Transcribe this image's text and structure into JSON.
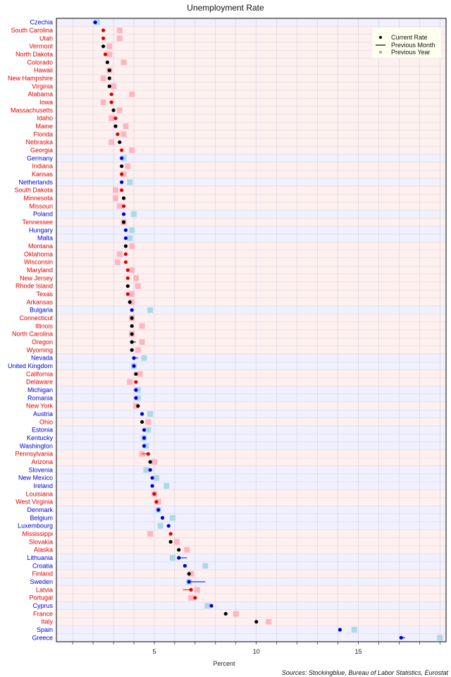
{
  "chart_data": {
    "type": "scatter",
    "title": "Unemployment Rate",
    "xlabel": "Percent",
    "source": "Sources: Stockingblue, Bureau of Labor Statistics, Eurostat",
    "xlim": [
      0.2,
      19.3
    ],
    "xticks": [
      5,
      10,
      15
    ],
    "legend": {
      "placement": "top-right",
      "current": "Current Rate",
      "previous_month": "Previous Month",
      "previous_year": "Previous Year"
    },
    "colors": {
      "eu": "#0000cc",
      "us_republican": "#e00000",
      "us_democratic": "#000000",
      "stripe_eu": "#f0f0ff",
      "stripe_us": "#fff0f0",
      "prev_year_eu": "#add8e6",
      "prev_year_us": "#ffb6c1"
    },
    "series": [
      {
        "name": "Current Rate"
      },
      {
        "name": "Previous Month"
      },
      {
        "name": "Previous Year"
      }
    ],
    "rows": [
      {
        "label": "Czechia",
        "group": "eu",
        "current": 2.1,
        "prev_month": 2.2,
        "prev_year": 2.2
      },
      {
        "label": "South Carolina",
        "group": "rep",
        "current": 2.5,
        "prev_month": 2.5,
        "prev_year": 3.3
      },
      {
        "label": "Utah",
        "group": "rep",
        "current": 2.5,
        "prev_month": 2.5,
        "prev_year": 3.3
      },
      {
        "label": "Vermont",
        "group": "dem",
        "current": 2.5,
        "prev_month": 2.5,
        "prev_year": 2.8
      },
      {
        "label": "North Dakota",
        "group": "rep",
        "current": 2.6,
        "prev_month": 2.6,
        "prev_year": 2.8
      },
      {
        "label": "Colorado",
        "group": "dem",
        "current": 2.7,
        "prev_month": 2.7,
        "prev_year": 3.5
      },
      {
        "label": "Hawaii",
        "group": "dem",
        "current": 2.8,
        "prev_month": 2.8,
        "prev_year": 2.8
      },
      {
        "label": "New Hampshire",
        "group": "dem",
        "current": 2.8,
        "prev_month": 2.8,
        "prev_year": 2.5
      },
      {
        "label": "Virginia",
        "group": "dem",
        "current": 2.8,
        "prev_month": 2.8,
        "prev_year": 3.0
      },
      {
        "label": "Alabama",
        "group": "rep",
        "current": 2.9,
        "prev_month": 2.9,
        "prev_year": 3.9
      },
      {
        "label": "Iowa",
        "group": "rep",
        "current": 2.9,
        "prev_month": 2.9,
        "prev_year": 2.5
      },
      {
        "label": "Massachusetts",
        "group": "dem",
        "current": 3.0,
        "prev_month": 3.0,
        "prev_year": 3.3
      },
      {
        "label": "Idaho",
        "group": "rep",
        "current": 3.1,
        "prev_month": 3.1,
        "prev_year": 2.9
      },
      {
        "label": "Maine",
        "group": "dem",
        "current": 3.1,
        "prev_month": 3.1,
        "prev_year": 3.6
      },
      {
        "label": "Florida",
        "group": "rep",
        "current": 3.2,
        "prev_month": 3.2,
        "prev_year": 3.5
      },
      {
        "label": "Nebraska",
        "group": "dem",
        "current": 3.3,
        "prev_month": 3.3,
        "prev_year": 2.9
      },
      {
        "label": "Georgia",
        "group": "rep",
        "current": 3.4,
        "prev_month": 3.4,
        "prev_year": 3.9
      },
      {
        "label": "Germany",
        "group": "eu",
        "current": 3.4,
        "prev_month": 3.4,
        "prev_year": 3.5
      },
      {
        "label": "Indiana",
        "group": "dem",
        "current": 3.4,
        "prev_month": 3.4,
        "prev_year": 3.7
      },
      {
        "label": "Kansas",
        "group": "rep",
        "current": 3.4,
        "prev_month": 3.4,
        "prev_year": 3.5
      },
      {
        "label": "Netherlands",
        "group": "eu",
        "current": 3.4,
        "prev_month": 3.4,
        "prev_year": 3.8
      },
      {
        "label": "South Dakota",
        "group": "rep",
        "current": 3.4,
        "prev_month": 3.4,
        "prev_year": 3.1
      },
      {
        "label": "Minnesota",
        "group": "dem",
        "current": 3.5,
        "prev_month": 3.5,
        "prev_year": 3.1
      },
      {
        "label": "Missouri",
        "group": "rep",
        "current": 3.5,
        "prev_month": 3.5,
        "prev_year": 3.3
      },
      {
        "label": "Poland",
        "group": "eu",
        "current": 3.5,
        "prev_month": 3.5,
        "prev_year": 4.0
      },
      {
        "label": "Tennessee",
        "group": "dem",
        "current": 3.5,
        "prev_month": 3.5,
        "prev_year": 3.5
      },
      {
        "label": "Hungary",
        "group": "eu",
        "current": 3.6,
        "prev_month": 3.6,
        "prev_year": 3.9
      },
      {
        "label": "Malta",
        "group": "eu",
        "current": 3.6,
        "prev_month": 3.6,
        "prev_year": 3.8
      },
      {
        "label": "Montana",
        "group": "dem",
        "current": 3.6,
        "prev_month": 3.6,
        "prev_year": 3.9
      },
      {
        "label": "Oklahoma",
        "group": "rep",
        "current": 3.6,
        "prev_month": 3.6,
        "prev_year": 3.3
      },
      {
        "label": "Wisconsin",
        "group": "rep",
        "current": 3.6,
        "prev_month": 3.6,
        "prev_year": 3.2
      },
      {
        "label": "Maryland",
        "group": "rep",
        "current": 3.7,
        "prev_month": 3.7,
        "prev_year": 3.9
      },
      {
        "label": "New Jersey",
        "group": "rep",
        "current": 3.7,
        "prev_month": 3.7,
        "prev_year": 4.1
      },
      {
        "label": "Rhode Island",
        "group": "dem",
        "current": 3.7,
        "prev_month": 3.7,
        "prev_year": 4.2
      },
      {
        "label": "Texas",
        "group": "rep",
        "current": 3.7,
        "prev_month": 3.7,
        "prev_year": 3.9
      },
      {
        "label": "Arkansas",
        "group": "dem",
        "current": 3.8,
        "prev_month": 3.8,
        "prev_year": 3.9
      },
      {
        "label": "Bulgaria",
        "group": "eu",
        "current": 3.9,
        "prev_month": 3.9,
        "prev_year": 4.8
      },
      {
        "label": "Connecticut",
        "group": "dem",
        "current": 3.9,
        "prev_month": 3.9,
        "prev_year": 3.9
      },
      {
        "label": "Illinois",
        "group": "dem",
        "current": 3.9,
        "prev_month": 3.9,
        "prev_year": 4.4
      },
      {
        "label": "North Carolina",
        "group": "dem",
        "current": 3.9,
        "prev_month": 3.9,
        "prev_year": 3.9
      },
      {
        "label": "Oregon",
        "group": "dem",
        "current": 3.9,
        "prev_month": 4.1,
        "prev_year": 4.4
      },
      {
        "label": "Wyoming",
        "group": "dem",
        "current": 3.9,
        "prev_month": 3.9,
        "prev_year": 4.2
      },
      {
        "label": "Nevada",
        "group": "eu",
        "current": 4.0,
        "prev_month": 4.2,
        "prev_year": 4.5
      },
      {
        "label": "United Kingdom",
        "group": "eu",
        "current": 4.0,
        "prev_month": 4.0,
        "prev_year": 4.0
      },
      {
        "label": "California",
        "group": "dem",
        "current": 4.1,
        "prev_month": 4.1,
        "prev_year": 4.3
      },
      {
        "label": "Delaware",
        "group": "rep",
        "current": 4.1,
        "prev_month": 4.1,
        "prev_year": 3.8
      },
      {
        "label": "Michigan",
        "group": "eu",
        "current": 4.1,
        "prev_month": 4.1,
        "prev_year": 4.2
      },
      {
        "label": "Romania",
        "group": "eu",
        "current": 4.1,
        "prev_month": 4.1,
        "prev_year": 4.2
      },
      {
        "label": "New York",
        "group": "dem",
        "current": 4.2,
        "prev_month": 4.2,
        "prev_year": 4.1
      },
      {
        "label": "Austria",
        "group": "eu",
        "current": 4.4,
        "prev_month": 4.4,
        "prev_year": 4.8
      },
      {
        "label": "Ohio",
        "group": "dem",
        "current": 4.4,
        "prev_month": 4.4,
        "prev_year": 4.7
      },
      {
        "label": "Estonia",
        "group": "eu",
        "current": 4.5,
        "prev_month": 4.5,
        "prev_year": 4.7
      },
      {
        "label": "Kentucky",
        "group": "eu",
        "current": 4.5,
        "prev_month": 4.5,
        "prev_year": 4.5
      },
      {
        "label": "Washington",
        "group": "eu",
        "current": 4.5,
        "prev_month": 4.5,
        "prev_year": 4.6
      },
      {
        "label": "Pennsylvania",
        "group": "rep",
        "current": 4.7,
        "prev_month": 4.4,
        "prev_year": 4.4
      },
      {
        "label": "Arizona",
        "group": "dem",
        "current": 4.8,
        "prev_month": 4.8,
        "prev_year": 5.0
      },
      {
        "label": "Slovenia",
        "group": "eu",
        "current": 4.8,
        "prev_month": 4.8,
        "prev_year": 4.6
      },
      {
        "label": "New Mexico",
        "group": "eu",
        "current": 4.9,
        "prev_month": 4.9,
        "prev_year": 5.1
      },
      {
        "label": "Ireland",
        "group": "eu",
        "current": 4.9,
        "prev_month": 4.9,
        "prev_year": 5.6
      },
      {
        "label": "Louisiana",
        "group": "rep",
        "current": 5.0,
        "prev_month": 4.9,
        "prev_year": 5.0
      },
      {
        "label": "West Virginia",
        "group": "rep",
        "current": 5.1,
        "prev_month": 5.1,
        "prev_year": 5.2
      },
      {
        "label": "Denmark",
        "group": "eu",
        "current": 5.2,
        "prev_month": 5.2,
        "prev_year": 5.2
      },
      {
        "label": "Belgium",
        "group": "eu",
        "current": 5.4,
        "prev_month": 5.4,
        "prev_year": 5.9
      },
      {
        "label": "Luxembourg",
        "group": "eu",
        "current": 5.7,
        "prev_month": 5.7,
        "prev_year": 5.3
      },
      {
        "label": "Mississippi",
        "group": "rep",
        "current": 5.8,
        "prev_month": 5.8,
        "prev_year": 4.8
      },
      {
        "label": "Slovakia",
        "group": "dem",
        "current": 5.8,
        "prev_month": 5.8,
        "prev_year": 6.1
      },
      {
        "label": "Alaska",
        "group": "dem",
        "current": 6.2,
        "prev_month": 6.2,
        "prev_year": 6.6
      },
      {
        "label": "Lithuania",
        "group": "eu",
        "current": 6.2,
        "prev_month": 6.6,
        "prev_year": 5.9
      },
      {
        "label": "Croatia",
        "group": "eu",
        "current": 6.5,
        "prev_month": 6.5,
        "prev_year": 7.5
      },
      {
        "label": "Finland",
        "group": "dem",
        "current": 6.7,
        "prev_month": 6.7,
        "prev_year": 6.8
      },
      {
        "label": "Sweden",
        "group": "eu",
        "current": 6.7,
        "prev_month": 7.5,
        "prev_year": 6.7
      },
      {
        "label": "Latvia",
        "group": "rep",
        "current": 6.8,
        "prev_month": 6.4,
        "prev_year": 7.1
      },
      {
        "label": "Portugal",
        "group": "rep",
        "current": 7.0,
        "prev_month": 7.0,
        "prev_year": 6.8
      },
      {
        "label": "Cyprus",
        "group": "eu",
        "current": 7.8,
        "prev_month": 7.8,
        "prev_year": 7.6
      },
      {
        "label": "France",
        "group": "dem",
        "current": 8.5,
        "prev_month": 8.5,
        "prev_year": 9.0
      },
      {
        "label": "Italy",
        "group": "dem",
        "current": 10.0,
        "prev_month": 10.0,
        "prev_year": 10.6
      },
      {
        "label": "Spain",
        "group": "eu",
        "current": 14.1,
        "prev_month": 14.1,
        "prev_year": 14.8
      },
      {
        "label": "Greece",
        "group": "eu",
        "current": 17.1,
        "prev_month": 17.3,
        "prev_year": 19.0
      }
    ]
  }
}
